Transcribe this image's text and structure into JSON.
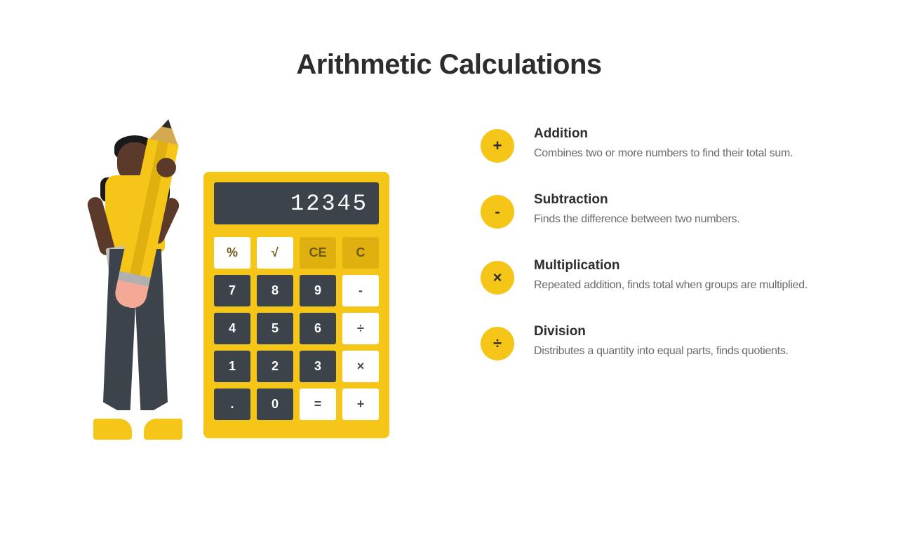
{
  "title": "Arithmetic Calculations",
  "colors": {
    "accent": "#f5c518",
    "accent_dark": "#e0b010",
    "dark": "#3d434a",
    "text_primary": "#2d2d2d",
    "text_secondary": "#6b6b6b",
    "skin": "#5b3a29",
    "eraser": "#f4a896",
    "background": "#ffffff"
  },
  "calculator": {
    "display": "12345",
    "keys": [
      {
        "label": "%",
        "style": "light"
      },
      {
        "label": "√",
        "style": "light"
      },
      {
        "label": "CE",
        "style": "accent"
      },
      {
        "label": "C",
        "style": "accent"
      },
      {
        "label": "7",
        "style": "dark"
      },
      {
        "label": "8",
        "style": "dark"
      },
      {
        "label": "9",
        "style": "dark"
      },
      {
        "label": "-",
        "style": "op"
      },
      {
        "label": "4",
        "style": "dark"
      },
      {
        "label": "5",
        "style": "dark"
      },
      {
        "label": "6",
        "style": "dark"
      },
      {
        "label": "÷",
        "style": "op"
      },
      {
        "label": "1",
        "style": "dark"
      },
      {
        "label": "2",
        "style": "dark"
      },
      {
        "label": "3",
        "style": "dark"
      },
      {
        "label": "×",
        "style": "op"
      },
      {
        "label": ".",
        "style": "dark"
      },
      {
        "label": "0",
        "style": "dark"
      },
      {
        "label": "=",
        "style": "op"
      },
      {
        "label": "+",
        "style": "op"
      }
    ]
  },
  "operations": [
    {
      "symbol": "+",
      "title": "Addition",
      "description": "Combines two or more numbers to find their total sum."
    },
    {
      "symbol": "-",
      "title": "Subtraction",
      "description": "Finds the difference between two numbers."
    },
    {
      "symbol": "×",
      "title": "Multiplication",
      "description": "Repeated addition, finds total when groups are multiplied."
    },
    {
      "symbol": "÷",
      "title": "Division",
      "description": "Distributes a quantity into equal parts, finds quotients."
    }
  ]
}
